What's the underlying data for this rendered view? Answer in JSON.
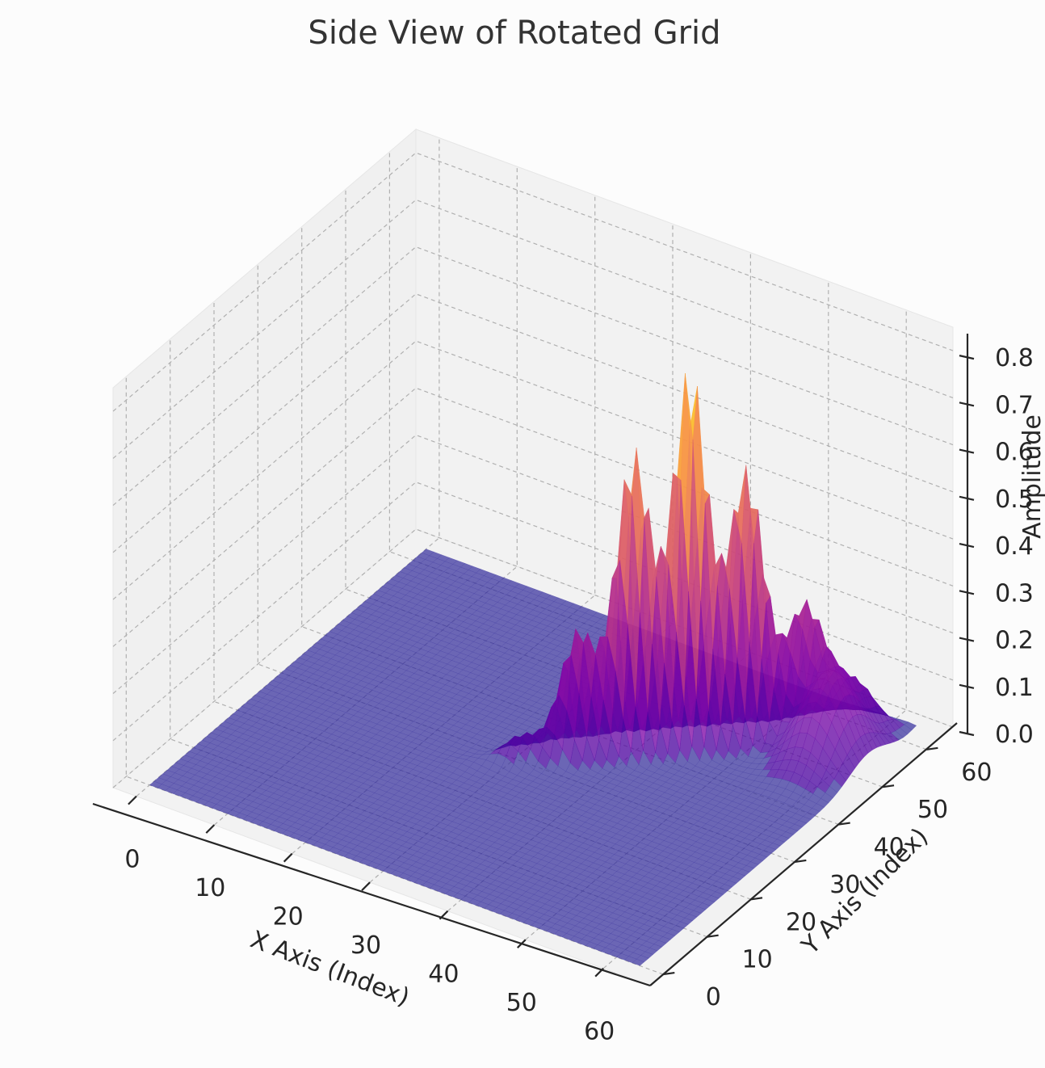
{
  "chart_data": {
    "type": "surface",
    "title": "Side View of Rotated Grid",
    "xlabel": "X Axis (Index)",
    "ylabel": "Y Axis (Index)",
    "zlabel": "Amplitude",
    "xlim": [
      -3,
      66
    ],
    "ylim": [
      -3,
      66
    ],
    "zlim": [
      0,
      0.82
    ],
    "x_ticks": [
      "0",
      "10",
      "20",
      "30",
      "40",
      "50",
      "60"
    ],
    "y_ticks": [
      "0",
      "10",
      "20",
      "30",
      "40",
      "50",
      "60"
    ],
    "z_ticks": [
      "0.0",
      "0.1",
      "0.2",
      "0.3",
      "0.4",
      "0.5",
      "0.6",
      "0.7",
      "0.8"
    ],
    "grid": true,
    "colormap": "plasma",
    "grid_points": 64,
    "z_max": 0.81,
    "description_values": {
      "flat_region_amplitude": 0.0,
      "ridge_peak_x": 45,
      "ridge_peak_amplitude": 0.8
    }
  }
}
